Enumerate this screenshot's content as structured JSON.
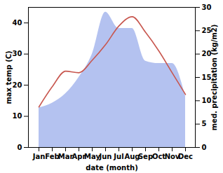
{
  "chart_data": {
    "type": "combo",
    "xlabel": "date (month)",
    "categories": [
      "Jan",
      "Feb",
      "Mar",
      "Apr",
      "May",
      "Jun",
      "Jul",
      "Aug",
      "Sep",
      "Oct",
      "Nov",
      "Dec"
    ],
    "series": [
      {
        "name": "med. precipitation (kg/m2)",
        "type": "area",
        "axis": "y2",
        "color": "#b4c2f0",
        "values": [
          8.5,
          9.5,
          11.5,
          15,
          20,
          29,
          25.5,
          25.5,
          18.5,
          18,
          18,
          11
        ]
      },
      {
        "name": "max temp (C)",
        "type": "line",
        "color": "#c8574f",
        "values": [
          13,
          19.5,
          24.5,
          24,
          28,
          33,
          39,
          42,
          37,
          31,
          24,
          17
        ]
      }
    ],
    "ylim": [
      0,
      45
    ],
    "yticks": [
      0,
      10,
      20,
      30,
      40
    ],
    "y2lim": [
      0,
      30
    ],
    "y2ticks": [
      0,
      5,
      10,
      15,
      20,
      25,
      30
    ]
  }
}
